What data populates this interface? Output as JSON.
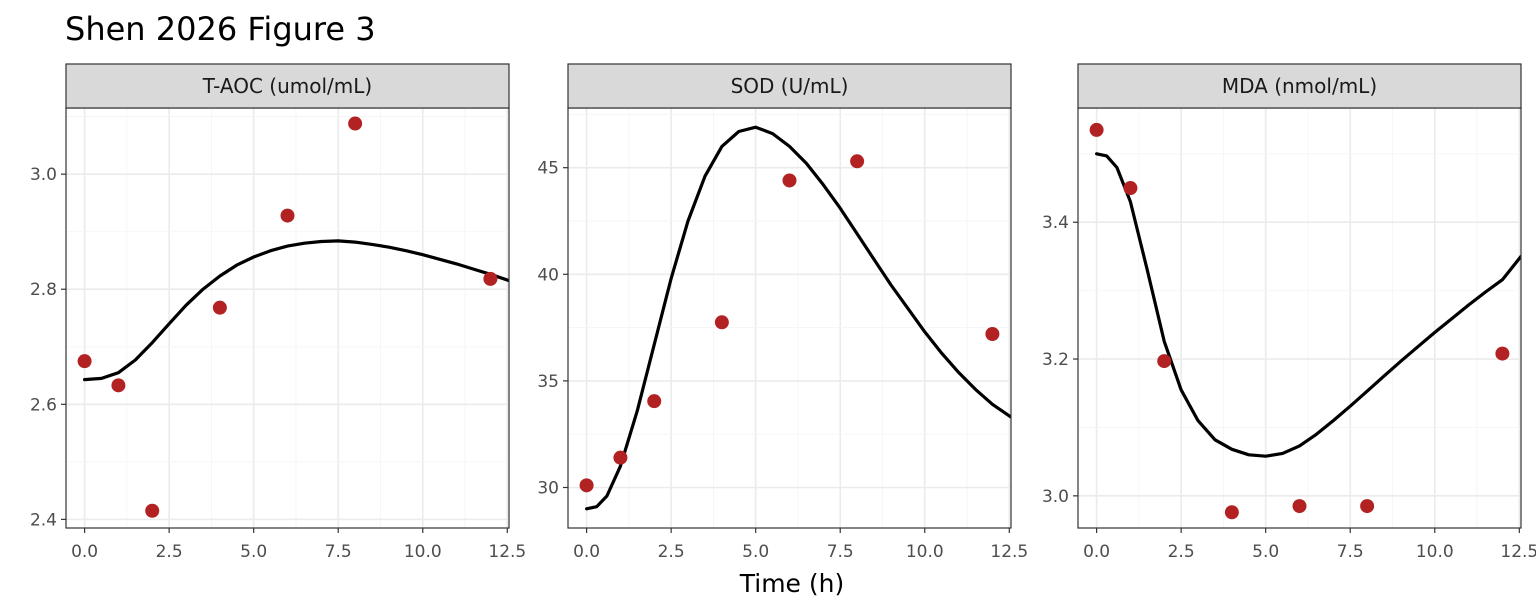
{
  "chart_data": {
    "type": "scatter",
    "title": "Shen 2026 Figure 3",
    "xlabel": "Time (h)",
    "ylabel": "",
    "x_ticks": [
      "0.0",
      "2.5",
      "5.0",
      "7.5",
      "10.0",
      "12.5"
    ],
    "xlim": [
      -0.55,
      12.55
    ],
    "grid": true,
    "legend": "none",
    "colors": {
      "points": "#b22222",
      "curve": "#000000",
      "strip": "#d9d9d9",
      "grid_major": "#ebebeb",
      "grid_minor": "#f5f5f5"
    },
    "panels": [
      {
        "label": "T-AOC (umol/mL)",
        "ylim": [
          2.385,
          3.115
        ],
        "y_ticks": [
          "2.4",
          "2.6",
          "2.8",
          "3.0"
        ],
        "points": {
          "x": [
            0,
            1,
            2,
            4,
            6,
            8,
            12
          ],
          "y": [
            2.675,
            2.633,
            2.415,
            2.768,
            2.928,
            3.088,
            2.818
          ]
        },
        "fit": {
          "x": [
            0,
            0.5,
            1,
            1.5,
            2,
            2.5,
            3,
            3.5,
            4,
            4.5,
            5,
            5.5,
            6,
            6.5,
            7,
            7.5,
            8,
            8.5,
            9,
            9.5,
            10,
            10.5,
            11,
            11.5,
            12,
            12.55
          ],
          "y": [
            2.643,
            2.645,
            2.655,
            2.677,
            2.707,
            2.74,
            2.772,
            2.8,
            2.823,
            2.842,
            2.856,
            2.867,
            2.875,
            2.88,
            2.883,
            2.884,
            2.882,
            2.878,
            2.873,
            2.867,
            2.86,
            2.852,
            2.844,
            2.835,
            2.826,
            2.815
          ]
        }
      },
      {
        "label": "SOD (U/mL)",
        "ylim": [
          28.1,
          47.8
        ],
        "y_ticks": [
          "30",
          "35",
          "40",
          "45"
        ],
        "points": {
          "x": [
            0,
            1,
            2,
            4,
            6,
            8,
            12
          ],
          "y": [
            30.1,
            31.4,
            34.05,
            37.75,
            44.4,
            45.3,
            37.2
          ]
        },
        "fit": {
          "x": [
            0,
            0.3,
            0.6,
            1,
            1.5,
            2,
            2.5,
            3,
            3.5,
            4,
            4.5,
            5,
            5.5,
            6,
            6.5,
            7,
            7.5,
            8,
            8.5,
            9,
            9.5,
            10,
            10.5,
            11,
            11.5,
            12,
            12.55
          ],
          "y": [
            29.0,
            29.1,
            29.6,
            31.0,
            33.6,
            36.7,
            39.8,
            42.5,
            44.6,
            46.0,
            46.7,
            46.9,
            46.6,
            46.0,
            45.2,
            44.2,
            43.1,
            41.9,
            40.7,
            39.5,
            38.4,
            37.3,
            36.3,
            35.4,
            34.6,
            33.9,
            33.3
          ]
        }
      },
      {
        "label": "MDA (nmol/mL)",
        "ylim": [
          2.953,
          3.567
        ],
        "y_ticks": [
          "3.0",
          "3.2",
          "3.4"
        ],
        "points": {
          "x": [
            0,
            1,
            2,
            4,
            6,
            8,
            12
          ],
          "y": [
            3.535,
            3.45,
            3.197,
            2.976,
            2.985,
            2.985,
            3.208
          ]
        },
        "fit": {
          "x": [
            0,
            0.3,
            0.6,
            1,
            1.5,
            2,
            2.5,
            3,
            3.5,
            4,
            4.5,
            5,
            5.5,
            6,
            6.5,
            7,
            7.5,
            8,
            8.5,
            9,
            9.5,
            10,
            10.5,
            11,
            11.5,
            12,
            12.55
          ],
          "y": [
            3.5,
            3.497,
            3.48,
            3.43,
            3.33,
            3.226,
            3.155,
            3.11,
            3.082,
            3.068,
            3.06,
            3.058,
            3.062,
            3.073,
            3.09,
            3.11,
            3.131,
            3.153,
            3.175,
            3.197,
            3.218,
            3.239,
            3.259,
            3.279,
            3.298,
            3.316,
            3.35
          ]
        }
      }
    ]
  }
}
